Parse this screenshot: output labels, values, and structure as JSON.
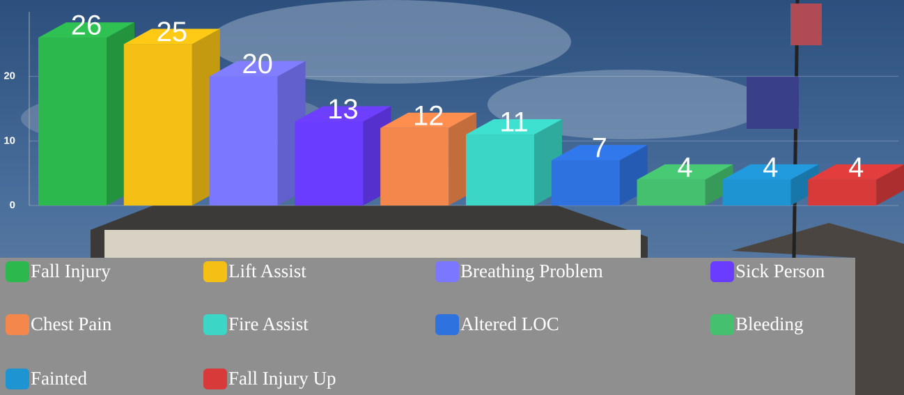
{
  "chart_data": {
    "type": "bar3d",
    "categories": [
      "Fall Injury",
      "Lift Assist",
      "Breathing Problem",
      "Sick Person",
      "Chest Pain",
      "Fire Assist",
      "Altered LOC",
      "Bleeding",
      "Fainted",
      "Fall Injury Up"
    ],
    "values": [
      26,
      25,
      20,
      13,
      12,
      11,
      7,
      4,
      4,
      4
    ],
    "colors": [
      "#2db84d",
      "#f5c014",
      "#7b78ff",
      "#6a3cff",
      "#f4874b",
      "#3bd6c6",
      "#2e72e0",
      "#45c06e",
      "#1f94d2",
      "#d83a3a"
    ],
    "ylim": [
      0,
      30
    ],
    "yticks": [
      0,
      10,
      20
    ],
    "grid": true
  }
}
